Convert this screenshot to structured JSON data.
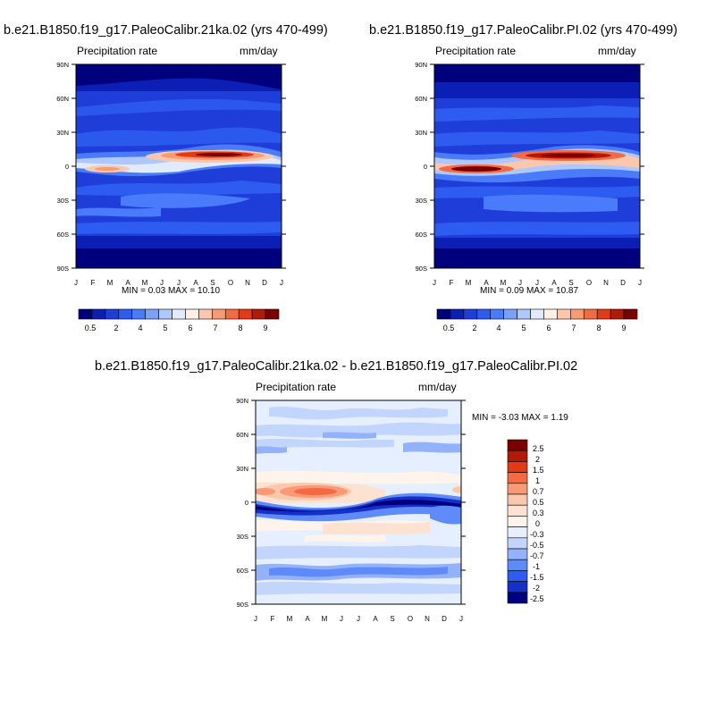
{
  "chart_data": [
    {
      "type": "heatmap",
      "title": "b.e21.B1850.f19_g17.PaleoCalibr.21ka.02 (yrs 470-499)",
      "subtitle_left": "Precipitation rate",
      "subtitle_right": "mm/day",
      "x_ticks": [
        "J",
        "F",
        "M",
        "A",
        "M",
        "J",
        "J",
        "A",
        "S",
        "O",
        "N",
        "D",
        "J"
      ],
      "y_ticks": [
        "90N",
        "60N",
        "30N",
        "0",
        "30S",
        "60S",
        "90S"
      ],
      "ylim": [
        -90,
        90
      ],
      "min_max_text": "MIN =   0.03 MAX =  10.10",
      "min": 0.03,
      "max": 10.1,
      "colorbar_labels": [
        "0.5",
        "2",
        "4",
        "5",
        "6",
        "7",
        "8",
        "9"
      ],
      "colors": [
        "#00007f",
        "#0b1fb4",
        "#1f3dd8",
        "#2e5cf0",
        "#4a7bfa",
        "#7aa0fb",
        "#aec8fd",
        "#e0ebff",
        "#fff0e6",
        "#fcc8ad",
        "#f99a76",
        "#f56a44",
        "#e23a18",
        "#b21a08",
        "#7a0000"
      ]
    },
    {
      "type": "heatmap",
      "title": "b.e21.B1850.f19_g17.PaleoCalibr.PI.02 (yrs 470-499)",
      "subtitle_left": "Precipitation rate",
      "subtitle_right": "mm/day",
      "x_ticks": [
        "J",
        "F",
        "M",
        "A",
        "M",
        "J",
        "J",
        "A",
        "S",
        "O",
        "N",
        "D",
        "J"
      ],
      "y_ticks": [
        "90N",
        "60N",
        "30N",
        "0",
        "30S",
        "60S",
        "90S"
      ],
      "ylim": [
        -90,
        90
      ],
      "min_max_text": "MIN =   0.09 MAX =  10.87",
      "min": 0.09,
      "max": 10.87,
      "colorbar_labels": [
        "0.5",
        "2",
        "4",
        "5",
        "6",
        "7",
        "8",
        "9"
      ],
      "colors": [
        "#00007f",
        "#0b1fb4",
        "#1f3dd8",
        "#2e5cf0",
        "#4a7bfa",
        "#7aa0fb",
        "#aec8fd",
        "#e0ebff",
        "#fff0e6",
        "#fcc8ad",
        "#f99a76",
        "#f56a44",
        "#e23a18",
        "#b21a08",
        "#7a0000"
      ]
    },
    {
      "type": "heatmap",
      "title": "b.e21.B1850.f19_g17.PaleoCalibr.21ka.02 - b.e21.B1850.f19_g17.PaleoCalibr.PI.02",
      "subtitle_left": "Precipitation rate",
      "subtitle_right": "mm/day",
      "x_ticks": [
        "J",
        "F",
        "M",
        "A",
        "M",
        "J",
        "J",
        "A",
        "S",
        "O",
        "N",
        "D",
        "J"
      ],
      "y_ticks": [
        "90N",
        "60N",
        "30N",
        "0",
        "30S",
        "60S",
        "90S"
      ],
      "ylim": [
        -90,
        90
      ],
      "min_max_text": "MIN =  -3.03 MAX =   1.19",
      "min": -3.03,
      "max": 1.19,
      "colorbar_labels": [
        "2.5",
        "2",
        "1.5",
        "1",
        "0.7",
        "0.5",
        "0.3",
        "0",
        "-0.3",
        "-0.5",
        "-0.7",
        "-1",
        "-1.5",
        "-2",
        "-2.5"
      ],
      "colors": [
        "#7a0000",
        "#b21a08",
        "#e23a18",
        "#f56a44",
        "#f99a76",
        "#fcc8ad",
        "#fde2d2",
        "#fff4ec",
        "#e6efff",
        "#c2d5fd",
        "#93b2fb",
        "#5f8afa",
        "#2f5cf0",
        "#1530c8",
        "#00007f"
      ]
    }
  ]
}
